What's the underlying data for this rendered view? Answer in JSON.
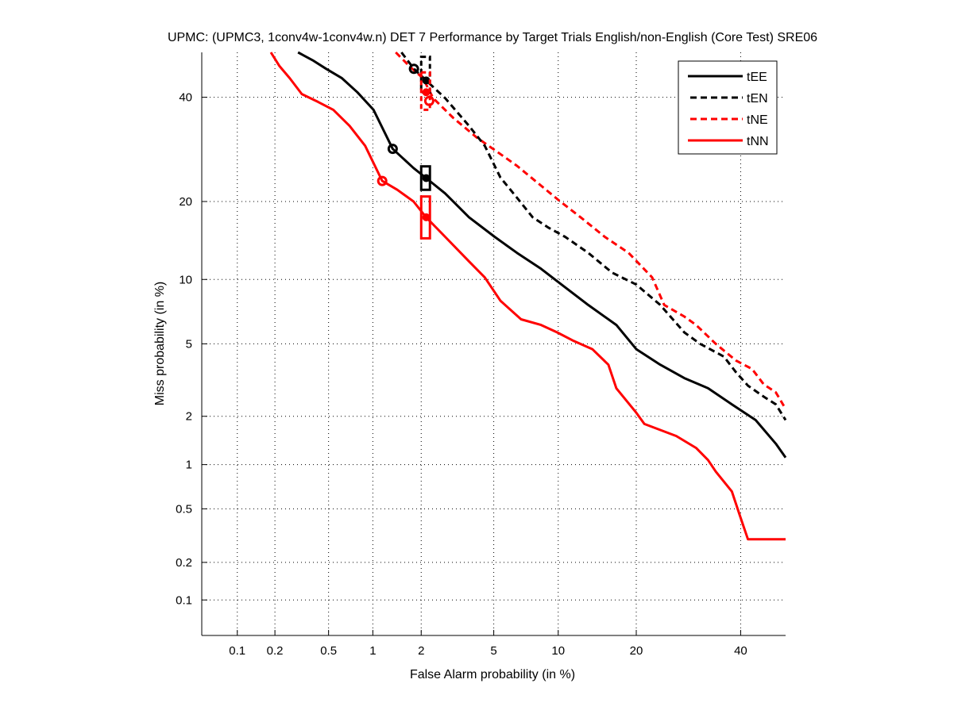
{
  "chart_data": {
    "type": "line",
    "title": "UPMC: (UPMC3, 1conv4w-1conv4w.n) DET 7 Performance by Target Trials English/non-English (Core Test) SRE06",
    "xlabel": "False Alarm probability (in %)",
    "ylabel": "Miss probability (in %)",
    "scale": "normal-deviate",
    "xlim": [
      0.05,
      50
    ],
    "ylim": [
      0.05,
      50
    ],
    "grid": true,
    "xticks": [
      0.1,
      0.2,
      0.5,
      1,
      2,
      5,
      10,
      20,
      40
    ],
    "xtick_labels": [
      "0.1",
      "0.2",
      "0.5",
      "1",
      "2",
      "5",
      "10",
      "20",
      "40"
    ],
    "yticks": [
      0.1,
      0.2,
      0.5,
      1,
      2,
      5,
      10,
      20,
      40
    ],
    "ytick_labels": [
      "0.1",
      "0.2",
      "0.5",
      "1",
      "2",
      "5",
      "10",
      "20",
      "40"
    ],
    "legend_position": "top-right",
    "series": [
      {
        "name": "tEE",
        "color": "#000000",
        "style": "solid",
        "x": [
          0.3,
          0.39,
          0.48,
          0.62,
          0.79,
          1.01,
          1.34,
          1.8,
          2.14,
          2.75,
          3.72,
          5.05,
          6.5,
          8.4,
          10.2,
          13.3,
          17.0,
          20.0,
          24.0,
          28.4,
          33.1,
          38.1,
          43.3,
          47.8,
          50.0
        ],
        "y": [
          50.0,
          48.1,
          46.3,
          44.2,
          41.1,
          37.3,
          29.3,
          25.7,
          23.9,
          21.3,
          17.6,
          14.9,
          12.9,
          11.1,
          9.6,
          7.7,
          6.2,
          4.7,
          3.9,
          3.3,
          2.9,
          2.35,
          1.9,
          1.36,
          1.11
        ],
        "min_dcf": {
          "x": 1.34,
          "y": 29.3
        },
        "act_dcf": {
          "x": 2.14,
          "y": 23.9
        },
        "conf_box": {
          "x": [
            2.0,
            2.25
          ],
          "y": [
            21.9,
            26.0
          ]
        }
      },
      {
        "name": "tEN",
        "color": "#000000",
        "style": "dashed",
        "x": [
          1.52,
          1.81,
          2.14,
          2.75,
          3.72,
          4.5,
          5.4,
          6.5,
          7.7,
          9.1,
          10.7,
          13.3,
          16.4,
          20.0,
          24.0,
          28.4,
          31.5,
          36.4,
          39.0,
          41.6,
          45.1,
          47.8,
          50.0
        ],
        "y": [
          50.0,
          46.3,
          43.7,
          39.8,
          33.9,
          29.9,
          24.0,
          20.6,
          17.6,
          16.1,
          14.9,
          12.9,
          10.7,
          9.5,
          7.7,
          5.7,
          5.0,
          4.3,
          3.55,
          3.0,
          2.6,
          2.35,
          1.9
        ],
        "min_dcf": {
          "x": 1.81,
          "y": 46.3
        },
        "act_dcf": {
          "x": 2.14,
          "y": 43.7
        },
        "conf_box": {
          "x": [
            2.0,
            2.25
          ],
          "y": [
            41.1,
            49.0
          ]
        }
      },
      {
        "name": "tNE",
        "color": "#ff0000",
        "style": "dashed",
        "x": [
          1.4,
          1.7,
          2.05,
          2.35,
          3.05,
          4.1,
          5.0,
          6.5,
          8.4,
          10.2,
          12.4,
          15.4,
          18.8,
          22.6,
          24.7,
          28.4,
          30.7,
          34.7,
          39.0,
          42.5,
          45.1,
          47.8,
          49.6
        ],
        "y": [
          50.0,
          46.9,
          44.2,
          39.8,
          35.6,
          31.5,
          29.2,
          26.1,
          22.6,
          20.0,
          17.6,
          14.9,
          12.9,
          10.2,
          7.7,
          6.8,
          6.2,
          5.0,
          4.1,
          3.7,
          3.05,
          2.75,
          2.3
        ],
        "min_dcf": {
          "x": 2.23,
          "y": 39.2
        },
        "act_dcf": {
          "x": 2.14,
          "y": 41.1
        },
        "conf_box": {
          "x": [
            2.0,
            2.25
          ],
          "y": [
            37.3,
            45.5
          ]
        }
      },
      {
        "name": "tNN",
        "color": "#ff0000",
        "style": "solid",
        "x": [
          0.186,
          0.217,
          0.26,
          0.32,
          0.42,
          0.54,
          0.7,
          0.89,
          1.15,
          1.43,
          1.8,
          2.14,
          2.75,
          3.72,
          4.5,
          5.4,
          6.8,
          8.4,
          9.9,
          11.5,
          13.8,
          15.9,
          17.0,
          20.0,
          21.3,
          26.9,
          30.7,
          33.1,
          34.7,
          38.1,
          39.8,
          41.6,
          50.0
        ],
        "y": [
          50.0,
          46.9,
          44.2,
          40.7,
          39.0,
          37.3,
          33.9,
          29.9,
          23.4,
          21.9,
          20.0,
          17.6,
          14.9,
          11.9,
          10.2,
          8.05,
          6.6,
          6.2,
          5.7,
          5.2,
          4.7,
          3.9,
          2.9,
          2.1,
          1.8,
          1.52,
          1.28,
          1.07,
          0.9,
          0.66,
          0.45,
          0.3,
          0.3
        ],
        "min_dcf": {
          "x": 1.15,
          "y": 23.4
        },
        "act_dcf": {
          "x": 2.14,
          "y": 17.6
        },
        "conf_box": {
          "x": [
            2.0,
            2.25
          ],
          "y": [
            14.7,
            20.8
          ]
        }
      }
    ]
  }
}
